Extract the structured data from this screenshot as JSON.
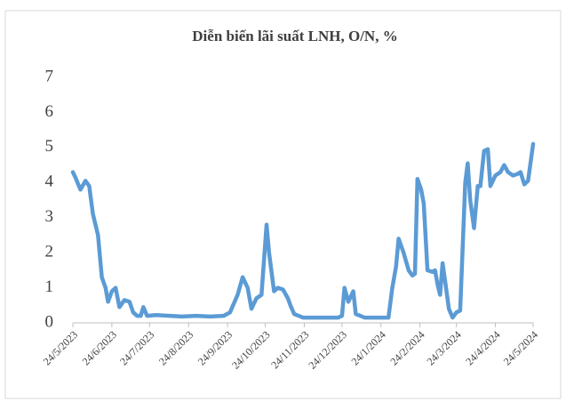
{
  "chart_data": {
    "type": "line",
    "title": "Diễn biến lãi suất LNH, O/N, %",
    "color": "#5b9bd5",
    "x": [
      "2023-05-24",
      "2023-05-26",
      "2023-05-30",
      "2023-06-03",
      "2023-06-06",
      "2023-06-09",
      "2023-06-13",
      "2023-06-16",
      "2023-06-19",
      "2023-06-21",
      "2023-06-24",
      "2023-06-27",
      "2023-06-30",
      "2023-07-04",
      "2023-07-08",
      "2023-07-11",
      "2023-07-14",
      "2023-07-17",
      "2023-07-19",
      "2023-07-22",
      "2023-07-29",
      "2023-08-09",
      "2023-08-19",
      "2023-08-30",
      "2023-09-10",
      "2023-09-21",
      "2023-09-26",
      "2023-10-02",
      "2023-10-06",
      "2023-10-10",
      "2023-10-13",
      "2023-10-17",
      "2023-10-21",
      "2023-10-25",
      "2023-10-27",
      "2023-10-31",
      "2023-11-03",
      "2023-11-07",
      "2023-11-11",
      "2023-11-13",
      "2023-11-16",
      "2023-11-23",
      "2023-12-07",
      "2023-12-21",
      "2023-12-24",
      "2023-12-26",
      "2023-12-29",
      "2024-01-02",
      "2024-01-04",
      "2024-01-11",
      "2024-01-26",
      "2024-01-30",
      "2024-02-02",
      "2024-02-05",
      "2024-02-07",
      "2024-02-11",
      "2024-02-15",
      "2024-02-18",
      "2024-02-20",
      "2024-02-22",
      "2024-02-25",
      "2024-02-27",
      "2024-03-01",
      "2024-03-05",
      "2024-03-07",
      "2024-03-09",
      "2024-03-11",
      "2024-03-13",
      "2024-03-15",
      "2024-03-18",
      "2024-03-21",
      "2024-03-24",
      "2024-03-27",
      "2024-03-31",
      "2024-04-02",
      "2024-04-04",
      "2024-04-07",
      "2024-04-10",
      "2024-04-12",
      "2024-04-15",
      "2024-04-18",
      "2024-04-20",
      "2024-04-24",
      "2024-04-28",
      "2024-05-01",
      "2024-05-04",
      "2024-05-08",
      "2024-05-12",
      "2024-05-14",
      "2024-05-17",
      "2024-05-20",
      "2024-05-24"
    ],
    "values": [
      4.3,
      4.15,
      3.8,
      4.05,
      3.9,
      3.1,
      2.5,
      1.3,
      1.0,
      0.6,
      0.9,
      1.0,
      0.45,
      0.65,
      0.6,
      0.3,
      0.2,
      0.2,
      0.45,
      0.2,
      0.22,
      0.2,
      0.18,
      0.2,
      0.18,
      0.2,
      0.3,
      0.8,
      1.3,
      1.0,
      0.4,
      0.7,
      0.8,
      2.8,
      2.0,
      0.9,
      1.0,
      0.95,
      0.7,
      0.5,
      0.25,
      0.15,
      0.15,
      0.15,
      0.2,
      1.0,
      0.6,
      0.9,
      0.25,
      0.15,
      0.15,
      0.15,
      1.0,
      1.6,
      2.4,
      2.0,
      1.5,
      1.35,
      1.4,
      4.1,
      3.8,
      3.4,
      1.5,
      1.45,
      1.5,
      1.1,
      0.8,
      1.7,
      1.2,
      0.4,
      0.15,
      0.3,
      0.35,
      4.0,
      4.55,
      3.5,
      2.7,
      3.9,
      3.9,
      4.9,
      4.95,
      3.9,
      4.2,
      4.3,
      4.5,
      4.3,
      4.2,
      4.25,
      4.3,
      3.95,
      4.05,
      5.1
    ],
    "xlim": [
      "2023-05-24",
      "2024-05-24"
    ],
    "xticks": [
      {
        "value": "2023-05-24",
        "label": "24/5/2023"
      },
      {
        "value": "2023-06-24",
        "label": "24/6/2023"
      },
      {
        "value": "2023-07-24",
        "label": "24/7/2023"
      },
      {
        "value": "2023-08-24",
        "label": "24/8/2023"
      },
      {
        "value": "2023-09-24",
        "label": "24/9/2023"
      },
      {
        "value": "2023-10-24",
        "label": "24/10/2023"
      },
      {
        "value": "2023-11-24",
        "label": "24/11/2023"
      },
      {
        "value": "2023-12-24",
        "label": "24/12/2023"
      },
      {
        "value": "2024-01-24",
        "label": "24/1/2024"
      },
      {
        "value": "2024-02-24",
        "label": "24/2/2024"
      },
      {
        "value": "2024-03-24",
        "label": "24/3/2024"
      },
      {
        "value": "2024-04-24",
        "label": "24/4/2024"
      },
      {
        "value": "2024-05-24",
        "label": "24/5/2024"
      }
    ],
    "ylim": [
      0,
      7
    ],
    "yticks": [
      0,
      1,
      2,
      3,
      4,
      5,
      6,
      7
    ]
  }
}
